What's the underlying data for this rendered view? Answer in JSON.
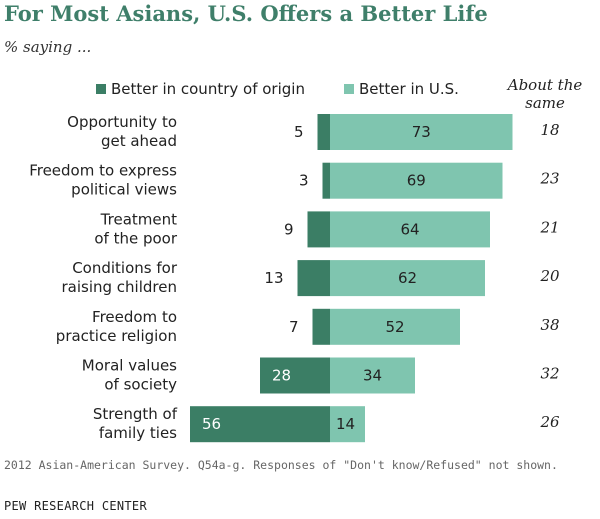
{
  "chart_data": {
    "type": "bar",
    "title": "For Most Asians, U.S. Offers a Better Life",
    "subtitle": "% saying ...",
    "categories": [
      [
        "Opportunity to",
        "get ahead"
      ],
      [
        "Freedom to express",
        "political views"
      ],
      [
        "Treatment",
        "of the poor"
      ],
      [
        "Conditions for",
        "raising children"
      ],
      [
        "Freedom to",
        "practice religion"
      ],
      [
        "Moral values",
        "of society"
      ],
      [
        "Strength of",
        "family ties"
      ]
    ],
    "series": [
      {
        "name": "Better in country of origin",
        "color": "#3b7e65",
        "values": [
          5,
          3,
          9,
          13,
          7,
          28,
          56
        ]
      },
      {
        "name": "Better in U.S.",
        "color": "#7fc5af",
        "values": [
          73,
          69,
          64,
          62,
          52,
          34,
          14
        ]
      }
    ],
    "about_the_same": {
      "label": "About the same",
      "label_lines": [
        "About the",
        "same"
      ],
      "values": [
        18,
        23,
        21,
        20,
        38,
        32,
        26
      ]
    }
  },
  "footnote": "2012 Asian-American Survey. Q54a-g. Responses of \"Don't know/Refused\" not shown.",
  "source": "PEW RESEARCH CENTER"
}
